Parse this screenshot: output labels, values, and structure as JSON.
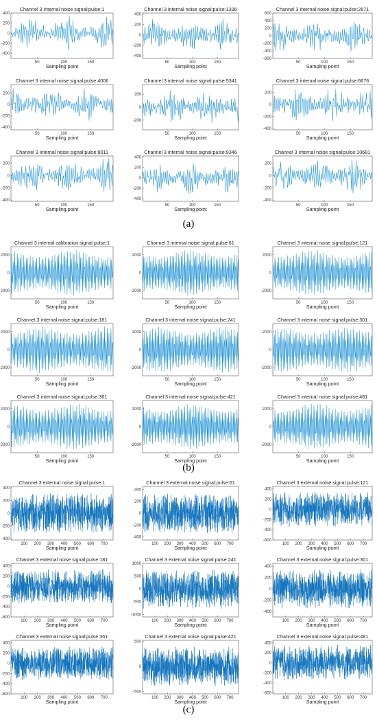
{
  "colors": {
    "line": "#1a8fd4",
    "axis": "#555555",
    "text": "#222222"
  },
  "chart_data": [
    {
      "panel": "(a)",
      "type": "line",
      "xlabel": "Sampling point",
      "x_ticks": [
        50,
        100,
        150
      ],
      "xlim": [
        1,
        192
      ],
      "n_points": 192,
      "plots": [
        {
          "title": "Channel 3 internal noise signal:pulse:1",
          "yticks": [
            -400,
            -200,
            0,
            200,
            400
          ],
          "ylim": [
            -500,
            400
          ],
          "amplitude": 300,
          "seed": 11
        },
        {
          "title": "Channel 3 internal noise signal:pulse:1336",
          "yticks": [
            -400,
            -200,
            0,
            200,
            400
          ],
          "ylim": [
            -450,
            420
          ],
          "amplitude": 280,
          "seed": 12
        },
        {
          "title": "Channel 3 internal noise signal:pulse:2671",
          "yticks": [
            -600,
            -400,
            -200,
            0,
            200,
            400,
            600
          ],
          "ylim": [
            -600,
            600
          ],
          "amplitude": 380,
          "seed": 13
        },
        {
          "title": "Channel 3 internal noise signal:pulse:4006",
          "yticks": [
            -400,
            -200,
            0,
            200
          ],
          "ylim": [
            -450,
            350
          ],
          "amplitude": 260,
          "seed": 14
        },
        {
          "title": "Channel 3 internal noise signal:pulse:5341",
          "yticks": [
            -200,
            0,
            200
          ],
          "ylim": [
            -350,
            350
          ],
          "amplitude": 230,
          "seed": 15
        },
        {
          "title": "Channel 3 internal noise signal:pulse:6676",
          "yticks": [
            -400,
            -200,
            0,
            200
          ],
          "ylim": [
            -420,
            330
          ],
          "amplitude": 260,
          "seed": 16
        },
        {
          "title": "Channel 3 internal noise signal:pulse:8011",
          "yticks": [
            -400,
            -200,
            0,
            200
          ],
          "ylim": [
            -420,
            320
          ],
          "amplitude": 250,
          "seed": 17
        },
        {
          "title": "Channel 3 internal noise signal:pulse:9346",
          "yticks": [
            -400,
            -200,
            0,
            200,
            400
          ],
          "ylim": [
            -450,
            420
          ],
          "amplitude": 270,
          "seed": 18
        },
        {
          "title": "Channel 3 internal noise signal:pulse:10681",
          "yticks": [
            -400,
            -200,
            0,
            200
          ],
          "ylim": [
            -420,
            320
          ],
          "amplitude": 250,
          "seed": 19
        }
      ]
    },
    {
      "panel": "(b)",
      "type": "line",
      "xlabel": "Sampling point",
      "x_ticks": [
        50,
        100,
        150
      ],
      "xlim": [
        1,
        192
      ],
      "n_points": 192,
      "plots": [
        {
          "title": "Channel 3 internal calibration signal:pulse:1",
          "yticks": [
            -2000,
            0,
            2000
          ],
          "ylim": [
            -2900,
            2900
          ],
          "amplitude": 2600,
          "seed": 21
        },
        {
          "title": "Channel 3 internal noise signal:pulse:61",
          "yticks": [
            -2000,
            0,
            2000
          ],
          "ylim": [
            -2900,
            2900
          ],
          "amplitude": 2600,
          "seed": 22
        },
        {
          "title": "Channel 3 internal noise signal:pulse:121",
          "yticks": [
            -2000,
            0,
            2000
          ],
          "ylim": [
            -2900,
            2900
          ],
          "amplitude": 2600,
          "seed": 23
        },
        {
          "title": "Channel 3 internal noise signal:pulse:181",
          "yticks": [
            -2000,
            0,
            2000
          ],
          "ylim": [
            -2900,
            2900
          ],
          "amplitude": 2600,
          "seed": 24
        },
        {
          "title": "Channel 3 internal noise signal:pulse:241",
          "yticks": [
            -2000,
            0,
            2000
          ],
          "ylim": [
            -2900,
            2900
          ],
          "amplitude": 2600,
          "seed": 25
        },
        {
          "title": "Channel 3 internal noise signal:pulse:301",
          "yticks": [
            -2000,
            0,
            2000
          ],
          "ylim": [
            -2900,
            2900
          ],
          "amplitude": 2600,
          "seed": 26
        },
        {
          "title": "Channel 3 internal noise signal:pulse:361",
          "yticks": [
            -2000,
            0,
            2000
          ],
          "ylim": [
            -2900,
            2900
          ],
          "amplitude": 2600,
          "seed": 27
        },
        {
          "title": "Channel 3 internal noise signal:pulse:421",
          "yticks": [
            -2000,
            0,
            2000
          ],
          "ylim": [
            -2900,
            2900
          ],
          "amplitude": 2600,
          "seed": 28
        },
        {
          "title": "Channel 3 internal noise signal:pulse:481",
          "yticks": [
            -2000,
            0,
            2000
          ],
          "ylim": [
            -2900,
            2900
          ],
          "amplitude": 2600,
          "seed": 29
        }
      ]
    },
    {
      "panel": "(c)",
      "type": "line",
      "xlabel": "Sampling point",
      "x_ticks": [
        100,
        200,
        300,
        400,
        500,
        600,
        700
      ],
      "xlim": [
        1,
        768
      ],
      "n_points": 768,
      "plots": [
        {
          "title": "Channel 3 external noise signal:pulse:1",
          "yticks": [
            -400,
            -200,
            0,
            200,
            400
          ],
          "ylim": [
            -420,
            420
          ],
          "amplitude": 300,
          "seed": 31
        },
        {
          "title": "Channel 3 external noise signal:pulse:61",
          "yticks": [
            -400,
            -200,
            0,
            200,
            400
          ],
          "ylim": [
            -450,
            450
          ],
          "amplitude": 320,
          "seed": 32
        },
        {
          "title": "Channel 3 external noise signal:pulse:121",
          "yticks": [
            -600,
            -400,
            -200,
            0,
            200,
            400
          ],
          "ylim": [
            -600,
            450
          ],
          "amplitude": 330,
          "seed": 33
        },
        {
          "title": "Channel 3 external noise signal:pulse:181",
          "yticks": [
            -600,
            -400,
            -200,
            0,
            200,
            400
          ],
          "ylim": [
            -600,
            450
          ],
          "amplitude": 320,
          "seed": 34
        },
        {
          "title": "Channel 3 external noise signal:pulse:241",
          "yticks": [
            -1000,
            -500,
            0,
            500,
            1000
          ],
          "ylim": [
            -1100,
            1000
          ],
          "amplitude": 750,
          "seed": 35
        },
        {
          "title": "Channel 3 external noise signal:pulse:301",
          "yticks": [
            -400,
            -200,
            0,
            200,
            400
          ],
          "ylim": [
            -500,
            450
          ],
          "amplitude": 330,
          "seed": 36
        },
        {
          "title": "Channel 3 external noise signal:pulse:361",
          "yticks": [
            -600,
            -400,
            -200,
            0,
            200,
            400
          ],
          "ylim": [
            -600,
            450
          ],
          "amplitude": 320,
          "seed": 37
        },
        {
          "title": "Channel 3 external noise signal:pulse:421",
          "yticks": [
            -500,
            0,
            500
          ],
          "ylim": [
            -550,
            520
          ],
          "amplitude": 380,
          "seed": 38
        },
        {
          "title": "Channel 3 external noise signal:pulse:481",
          "yticks": [
            -600,
            -400,
            -200,
            0,
            200,
            400
          ],
          "ylim": [
            -620,
            450
          ],
          "amplitude": 340,
          "seed": 39
        }
      ]
    }
  ]
}
